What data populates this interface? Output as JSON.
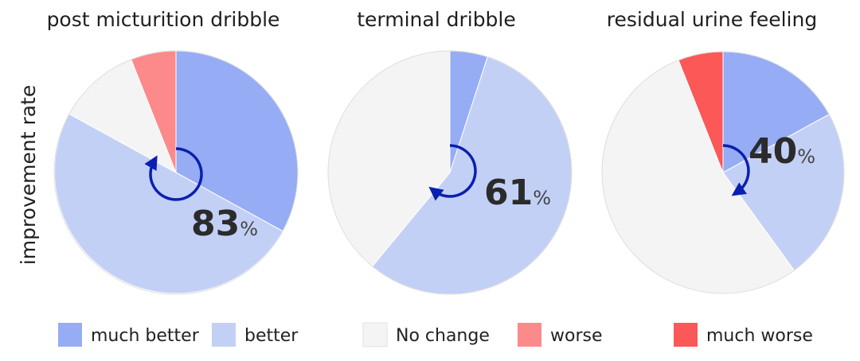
{
  "ylabel": "improvement rate",
  "colors": {
    "much_better": "#96acf4",
    "better": "#c3d0f6",
    "no_change": "#f4f4f4",
    "worse": "#fc8a8a",
    "much_worse": "#fc5858",
    "arrow": "#0b1fb0"
  },
  "legend": [
    {
      "key": "much_better",
      "label": "much better"
    },
    {
      "key": "better",
      "label": "better"
    },
    {
      "key": "no_change",
      "label": "No change"
    },
    {
      "key": "worse",
      "label": "worse"
    },
    {
      "key": "much_worse",
      "label": "much worse"
    }
  ],
  "chart_data": [
    {
      "type": "pie",
      "title": "post micturition dribble",
      "slices": [
        {
          "key": "much_better",
          "value": 33
        },
        {
          "key": "better",
          "value": 50
        },
        {
          "key": "no_change",
          "value": 11
        },
        {
          "key": "worse",
          "value": 6
        },
        {
          "key": "much_worse",
          "value": 0
        }
      ],
      "improvement_rate": "83",
      "unit": "%"
    },
    {
      "type": "pie",
      "title": "terminal dribble",
      "slices": [
        {
          "key": "much_better",
          "value": 5
        },
        {
          "key": "better",
          "value": 56
        },
        {
          "key": "no_change",
          "value": 39
        },
        {
          "key": "worse",
          "value": 0
        },
        {
          "key": "much_worse",
          "value": 0
        }
      ],
      "improvement_rate": "61",
      "unit": "%"
    },
    {
      "type": "pie",
      "title": "residual urine feeling",
      "slices": [
        {
          "key": "much_better",
          "value": 17
        },
        {
          "key": "better",
          "value": 23
        },
        {
          "key": "no_change",
          "value": 54
        },
        {
          "key": "worse",
          "value": 0
        },
        {
          "key": "much_worse",
          "value": 6
        }
      ],
      "improvement_rate": "40",
      "unit": "%"
    }
  ]
}
